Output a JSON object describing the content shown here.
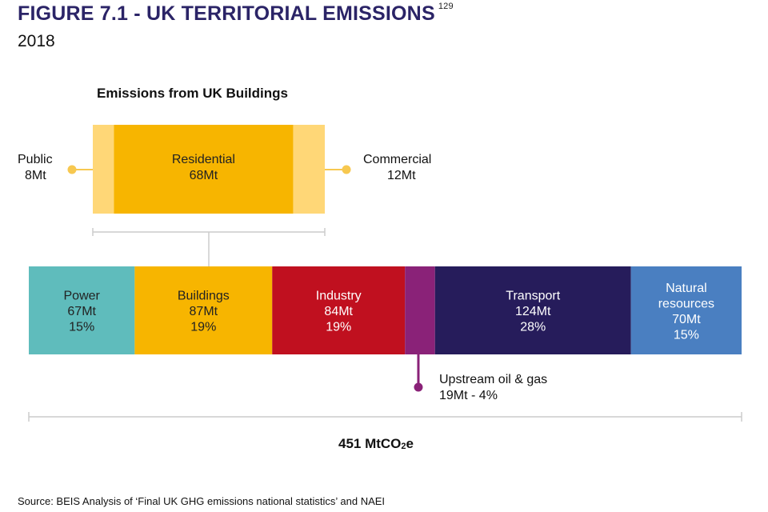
{
  "header": {
    "title": "FIGURE 7.1 - UK TERRITORIAL EMISSIONS",
    "footnote_ref": "129",
    "subtitle": "2018"
  },
  "buildings_panel": {
    "title": "Emissions from UK Buildings"
  },
  "total": {
    "prefix": "451 MtCO",
    "subscript": "2",
    "suffix": "e"
  },
  "source": "Source: BEIS Analysis of ‘Final UK GHG emissions national statistics’ and NAEI",
  "colors": {
    "power": "#5fbcbc",
    "buildings": "#f7b500",
    "industry": "#c0101f",
    "upstream": "#8a2278",
    "transport": "#261c5b",
    "natural": "#4a7fc1",
    "residential": "#f7b500",
    "public_commercial": "#ffd777",
    "connector": "#cccccc",
    "callout": "#f7c850"
  },
  "chart_data": [
    {
      "type": "bar",
      "orientation": "horizontal-stacked",
      "title": "",
      "total_label": "451 MtCO2e",
      "series": [
        {
          "key": "power",
          "name": "Power",
          "value_label": "67Mt",
          "pct_label": "15%",
          "value": 67,
          "pct": 15
        },
        {
          "key": "buildings",
          "name": "Buildings",
          "value_label": "87Mt",
          "pct_label": "19%",
          "value": 87,
          "pct": 19
        },
        {
          "key": "industry",
          "name": "Industry",
          "value_label": "84Mt",
          "pct_label": "19%",
          "value": 84,
          "pct": 19
        },
        {
          "key": "upstream",
          "name": "Upstream oil & gas",
          "value_label": "19Mt - 4%",
          "value": 19,
          "pct": 4
        },
        {
          "key": "transport",
          "name": "Transport",
          "value_label": "124Mt",
          "pct_label": "28%",
          "value": 124,
          "pct": 28
        },
        {
          "key": "natural",
          "name": "Natural resources",
          "name_lines": [
            "Natural",
            "resources"
          ],
          "value_label": "70Mt",
          "pct_label": "15%",
          "value": 70,
          "pct": 15
        }
      ]
    },
    {
      "type": "bar",
      "orientation": "horizontal-stacked",
      "title": "Emissions from UK Buildings",
      "series": [
        {
          "key": "public",
          "name": "Public",
          "value_label": "8Mt",
          "value": 8
        },
        {
          "key": "residential",
          "name": "Residential",
          "value_label": "68Mt",
          "value": 68
        },
        {
          "key": "commercial",
          "name": "Commercial",
          "value_label": "12Mt",
          "value": 12
        }
      ]
    }
  ]
}
